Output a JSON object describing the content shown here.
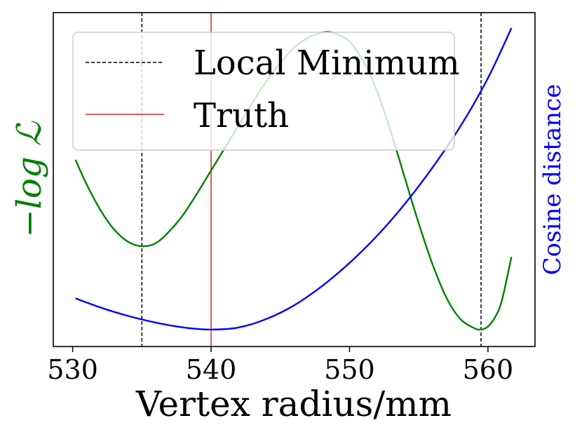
{
  "chart_data": {
    "type": "line",
    "xlabel": "Vertex radius/mm",
    "ylabel_left": "−log ℒ",
    "ylabel_right": "Cosine distance",
    "xlim": [
      528.6,
      563.4
    ],
    "xticks": [
      "530",
      "540",
      "550",
      "560"
    ],
    "xtick_values": [
      530,
      540,
      550,
      560
    ],
    "grid": false,
    "legend_placement": "upper-left",
    "legend": [
      {
        "label": "Local Minimum",
        "style": "dashed",
        "color": "#000000"
      },
      {
        "label": "Truth",
        "style": "solid",
        "color": "#d62728"
      }
    ],
    "vlines": [
      {
        "x": 535.0,
        "style": "dashed",
        "color": "#000000"
      },
      {
        "x": 540.0,
        "style": "solid",
        "color": "#d62728"
      },
      {
        "x": 559.5,
        "style": "dashed",
        "color": "#000000"
      }
    ],
    "series": [
      {
        "name": "−log ℒ",
        "color": "#008000",
        "axis": "left",
        "ylim": [
          0,
          1.0
        ],
        "x": [
          530.2,
          531,
          532,
          533,
          534,
          535,
          536,
          537,
          538,
          539,
          540,
          541,
          542,
          543,
          544,
          545,
          546,
          547,
          548,
          548.5,
          549,
          550,
          551,
          552,
          553,
          554,
          555,
          556,
          557,
          558,
          559,
          559.5,
          560,
          560.5,
          561,
          561.7
        ],
        "y": [
          0.565,
          0.485,
          0.4,
          0.335,
          0.295,
          0.28,
          0.29,
          0.33,
          0.385,
          0.455,
          0.53,
          0.605,
          0.68,
          0.755,
          0.825,
          0.885,
          0.935,
          0.968,
          0.985,
          0.987,
          0.982,
          0.955,
          0.89,
          0.79,
          0.655,
          0.505,
          0.355,
          0.22,
          0.11,
          0.04,
          0.01,
          0.005,
          0.015,
          0.045,
          0.1,
          0.245
        ]
      },
      {
        "name": "Cosine distance",
        "color": "#0000ff",
        "axis": "right",
        "ylim": [
          0,
          1.0
        ],
        "x": [
          530.2,
          532,
          534,
          536,
          538,
          540,
          542,
          544,
          546,
          548,
          550,
          552,
          554,
          556,
          558,
          560,
          561.7
        ],
        "y": [
          0.108,
          0.078,
          0.05,
          0.028,
          0.012,
          0.005,
          0.012,
          0.04,
          0.085,
          0.148,
          0.225,
          0.315,
          0.42,
          0.54,
          0.675,
          0.835,
          1.0
        ]
      }
    ]
  }
}
